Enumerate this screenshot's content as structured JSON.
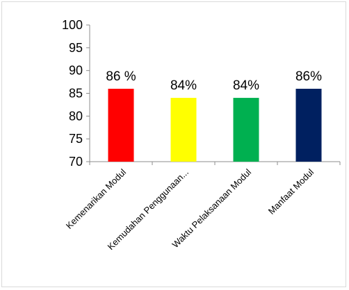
{
  "chart_data": {
    "type": "bar",
    "categories": [
      "Kemenarikan Modul",
      "Kemudahan Penggunaan...",
      "Waktu Pelaksanaan Modul",
      "Manfaat Modul"
    ],
    "values": [
      86,
      84,
      84,
      86
    ],
    "data_labels": [
      "86 %",
      "84%",
      "84%",
      "86%"
    ],
    "bar_colors": [
      "#ff0000",
      "#ffff00",
      "#00b050",
      "#002060"
    ],
    "title": "",
    "xlabel": "",
    "ylabel": "",
    "ylim": [
      70,
      100
    ],
    "yticks": [
      70,
      75,
      80,
      85,
      90,
      95,
      100
    ],
    "ytick_labels": [
      "70",
      "75",
      "80",
      "85",
      "90",
      "95",
      "100"
    ],
    "grid": false,
    "legend": "none"
  }
}
